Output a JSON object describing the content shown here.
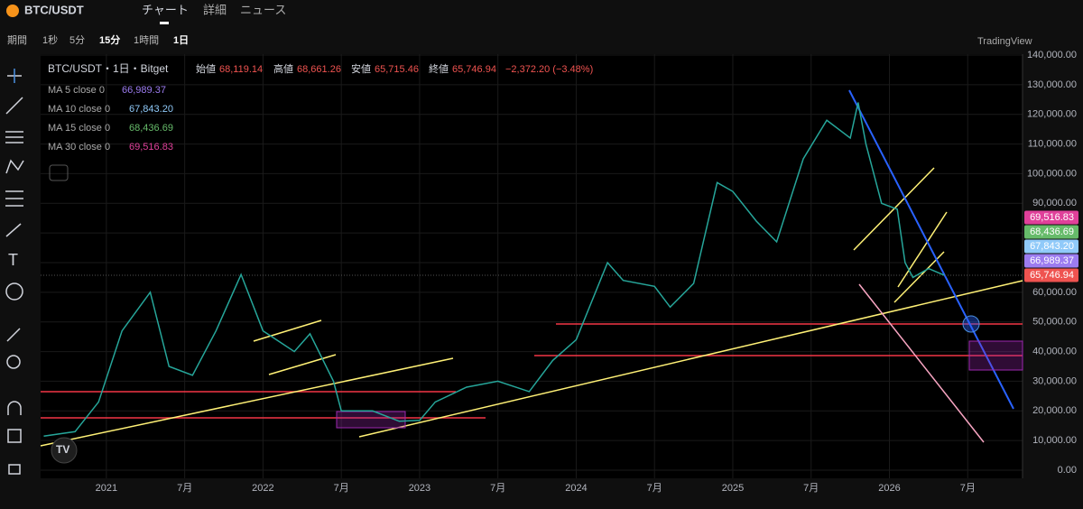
{
  "header": {
    "symbol": "BTC/USDT",
    "tabs": [
      "チャート",
      "詳細",
      "ニュース"
    ]
  },
  "toolbar": {
    "items": [
      "期間",
      "1秒",
      "5分",
      "15分",
      "1時間",
      "1日"
    ],
    "brand": "TradingView"
  },
  "legend": {
    "title": "BTC/USDT・1日・Bitget",
    "open_label": "始値",
    "open": "68,119.14",
    "high_label": "高値",
    "high": "68,661.26",
    "low_label": "安値",
    "low": "65,715.46",
    "close_label": "終値",
    "close": "65,746.94",
    "change": "−2,372.20 (−3.48%)"
  },
  "indicators": [
    {
      "name": "MA 5 close 0",
      "value": 66989.37,
      "value_label": "66,989.37",
      "color": "#9c7cf0"
    },
    {
      "name": "MA 10 close 0",
      "value": 67843.2,
      "value_label": "67,843.20",
      "color": "#90caf9"
    },
    {
      "name": "MA 15 close 0",
      "value": 68436.69,
      "value_label": "68,436.69",
      "color": "#66bb6a"
    },
    {
      "name": "MA 30 close 0",
      "value": 69516.83,
      "value_label": "69,516.83",
      "color": "#e0409a"
    }
  ],
  "chart_data": {
    "type": "line",
    "last_price": 65746.94,
    "last_price_label": "65,746.94",
    "last_price_color": "#ef5350",
    "x": [
      2020.6,
      2020.8,
      2020.95,
      2021.1,
      2021.28,
      2021.4,
      2021.55,
      2021.7,
      2021.86,
      2022.0,
      2022.2,
      2022.3,
      2022.45,
      2022.5,
      2022.7,
      2022.87,
      2023.0,
      2023.1,
      2023.3,
      2023.5,
      2023.7,
      2023.85,
      2024.0,
      2024.2,
      2024.3,
      2024.5,
      2024.6,
      2024.75,
      2024.9,
      2025.0,
      2025.15,
      2025.28,
      2025.45,
      2025.6,
      2025.75,
      2025.8,
      2025.85,
      2025.95,
      2026.05,
      2026.1,
      2026.15,
      2026.25,
      2026.35
    ],
    "series": [
      {
        "color": "#26a69a",
        "values": [
          11500,
          13000,
          23000,
          47000,
          60000,
          35000,
          32000,
          47000,
          66000,
          47000,
          40000,
          46000,
          30000,
          20000,
          20000,
          16500,
          16800,
          23000,
          28000,
          30000,
          26500,
          37000,
          44000,
          70000,
          64000,
          62000,
          55000,
          63000,
          97000,
          94000,
          84000,
          77000,
          105000,
          118000,
          112000,
          124000,
          110000,
          90000,
          88000,
          70000,
          65000,
          68000,
          65747
        ]
      }
    ],
    "xlim": [
      2020.58,
      2026.85
    ],
    "xticks": [
      2021,
      {
        "value": 2021.5,
        "label": "7月"
      },
      2022,
      {
        "value": 2022.5,
        "label": "7月"
      },
      2023,
      {
        "value": 2023.5,
        "label": "7月"
      },
      2024,
      {
        "value": 2024.5,
        "label": "7月"
      },
      2025,
      {
        "value": 2025.5,
        "label": "7月"
      },
      2026,
      {
        "value": 2026.5,
        "label": "7月"
      }
    ],
    "ylim": [
      0,
      140000
    ],
    "yticks": [
      {
        "value": 0,
        "label": "0.00"
      },
      {
        "value": 10000,
        "label": "10,000.00"
      },
      {
        "value": 20000,
        "label": "20,000.00"
      },
      {
        "value": 30000,
        "label": "30,000.00"
      },
      {
        "value": 40000,
        "label": "40,000.00"
      },
      {
        "value": 50000,
        "label": "50,000.00"
      },
      {
        "value": 60000,
        "label": "60,000.00"
      },
      {
        "value": 70000,
        "label": "70,000.00"
      },
      {
        "value": 80000,
        "label": "80,000.00"
      },
      {
        "value": 90000,
        "label": "90,000.00"
      },
      {
        "value": 100000,
        "label": "100,000.00"
      },
      {
        "value": 110000,
        "label": "110,000.00"
      },
      {
        "value": 120000,
        "label": "120,000.00"
      },
      {
        "value": 130000,
        "label": "130,000.00"
      },
      {
        "value": 140000,
        "label": "140,000.00"
      }
    ]
  }
}
